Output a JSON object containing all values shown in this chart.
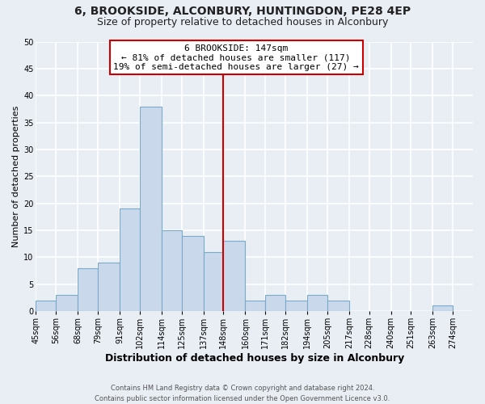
{
  "title": "6, BROOKSIDE, ALCONBURY, HUNTINGDON, PE28 4EP",
  "subtitle": "Size of property relative to detached houses in Alconbury",
  "xlabel": "Distribution of detached houses by size in Alconbury",
  "ylabel": "Number of detached properties",
  "bin_edges": [
    45,
    56,
    68,
    79,
    91,
    102,
    114,
    125,
    137,
    148,
    160,
    171,
    182,
    194,
    205,
    217,
    228,
    240,
    251,
    263,
    274,
    285
  ],
  "bar_heights": [
    2,
    3,
    8,
    9,
    19,
    38,
    15,
    14,
    11,
    13,
    2,
    3,
    2,
    3,
    2,
    0,
    0,
    0,
    0,
    1,
    0
  ],
  "bar_color": "#c9d9eb",
  "bar_edgecolor": "#7aaac8",
  "vline_x": 148,
  "vline_color": "#cc0000",
  "annotation_title": "6 BROOKSIDE: 147sqm",
  "annotation_line1": "← 81% of detached houses are smaller (117)",
  "annotation_line2": "19% of semi-detached houses are larger (27) →",
  "box_edgecolor": "#cc0000",
  "ylim": [
    0,
    50
  ],
  "yticks": [
    0,
    5,
    10,
    15,
    20,
    25,
    30,
    35,
    40,
    45,
    50
  ],
  "tick_labels": [
    "45sqm",
    "56sqm",
    "68sqm",
    "79sqm",
    "91sqm",
    "102sqm",
    "114sqm",
    "125sqm",
    "137sqm",
    "148sqm",
    "160sqm",
    "171sqm",
    "182sqm",
    "194sqm",
    "205sqm",
    "217sqm",
    "228sqm",
    "240sqm",
    "251sqm",
    "263sqm",
    "274sqm"
  ],
  "page_bg_color": "#e8eef4",
  "plot_bg_color": "#e8eef4",
  "grid_color": "#ffffff",
  "footer_line1": "Contains HM Land Registry data © Crown copyright and database right 2024.",
  "footer_line2": "Contains public sector information licensed under the Open Government Licence v3.0.",
  "title_fontsize": 10,
  "subtitle_fontsize": 9,
  "xlabel_fontsize": 9,
  "ylabel_fontsize": 8,
  "tick_fontsize": 7,
  "footer_fontsize": 6
}
